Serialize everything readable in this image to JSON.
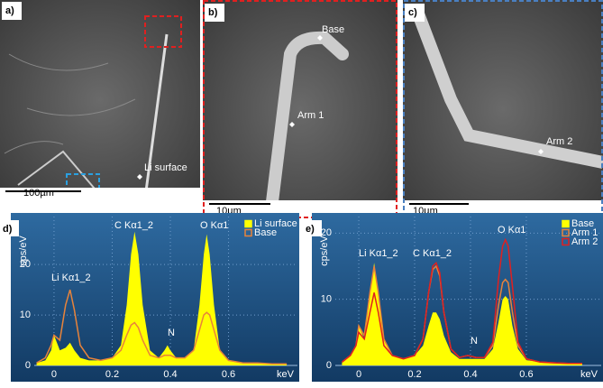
{
  "panels": [
    {
      "label": "a)",
      "annotations": [
        "Li surface"
      ],
      "scale_bar": "100µm"
    },
    {
      "label": "b)",
      "annotations": [
        "Base",
        "Arm 1"
      ],
      "scale_bar": "10µm"
    },
    {
      "label": "c)",
      "annotations": [
        "Arm 2"
      ],
      "scale_bar": "10µm"
    }
  ],
  "chart_data": [
    {
      "type": "line",
      "panel_label": "d)",
      "x_label": "keV",
      "y_label": "cps/eV",
      "annotations": [
        "Li Kα1_2",
        "C Kα1_2",
        "N",
        "O Kα1"
      ],
      "xlim": [
        -0.068,
        0.837
      ],
      "ylim": [
        0,
        29.5
      ],
      "xticks": [
        0,
        0.2,
        0.4,
        0.6
      ],
      "yticks": [
        0,
        10,
        20
      ],
      "grid": true,
      "legend": "top-right",
      "x": [
        -0.06,
        -0.03,
        -0.01,
        0,
        0.02,
        0.04,
        0.055,
        0.07,
        0.09,
        0.12,
        0.16,
        0.2,
        0.23,
        0.25,
        0.265,
        0.277,
        0.29,
        0.305,
        0.33,
        0.36,
        0.38,
        0.39,
        0.4,
        0.42,
        0.45,
        0.48,
        0.5,
        0.515,
        0.525,
        0.535,
        0.55,
        0.57,
        0.6,
        0.65,
        0.7,
        0.75,
        0.8
      ],
      "series": [
        {
          "name": "Li surface",
          "color": "#ffff00",
          "fill": true,
          "values": [
            0.5,
            1,
            3,
            6,
            3,
            3.5,
            4.5,
            3,
            1.5,
            1,
            1,
            1.5,
            4,
            12,
            22,
            26.5,
            22,
            12,
            3,
            1.5,
            3,
            4,
            3,
            1.5,
            1.5,
            3,
            12,
            22,
            26,
            22,
            12,
            3,
            1,
            0.5,
            0.5,
            0.3,
            0.3
          ]
        },
        {
          "name": "Base",
          "color": "#e8833a",
          "fill": false,
          "values": [
            0.5,
            1.5,
            4,
            6,
            5,
            12,
            15,
            11,
            4,
            1.5,
            1,
            1.5,
            3,
            6,
            8,
            8.5,
            7.5,
            5,
            2,
            1.5,
            2,
            2,
            2,
            1.5,
            1.5,
            3,
            7,
            10,
            10.5,
            10,
            7,
            3,
            1,
            0.5,
            0.5,
            0.3,
            0.3
          ]
        }
      ]
    },
    {
      "type": "line",
      "panel_label": "e)",
      "x_label": "keV",
      "y_label": "cps/eV",
      "annotations": [
        "Li Kα1_2",
        "C Kα1_2",
        "N",
        "O Kα1"
      ],
      "xlim": [
        -0.084,
        0.868
      ],
      "ylim": [
        0,
        22.5
      ],
      "xticks": [
        0,
        0.2,
        0.4,
        0.6
      ],
      "yticks": [
        0,
        10,
        20
      ],
      "grid": true,
      "legend": "top-right",
      "x": [
        -0.06,
        -0.03,
        -0.01,
        0,
        0.02,
        0.04,
        0.055,
        0.07,
        0.09,
        0.12,
        0.16,
        0.2,
        0.23,
        0.25,
        0.265,
        0.277,
        0.29,
        0.305,
        0.33,
        0.36,
        0.38,
        0.39,
        0.4,
        0.42,
        0.45,
        0.48,
        0.5,
        0.515,
        0.525,
        0.535,
        0.55,
        0.57,
        0.6,
        0.65,
        0.7,
        0.75,
        0.8
      ],
      "series": [
        {
          "name": "Base",
          "color": "#ffff00",
          "fill": true,
          "values": [
            0.5,
            1.5,
            3,
            6,
            4,
            11,
            15.5,
            11,
            4,
            1.5,
            1,
            1.5,
            3,
            6,
            8,
            8,
            7,
            4.5,
            2,
            1,
            1,
            1,
            1,
            1,
            1,
            2.5,
            6.5,
            10,
            10.5,
            10,
            6,
            2.5,
            0.8,
            0.5,
            0.4,
            0.3,
            0.3
          ]
        },
        {
          "name": "Arm 1",
          "color": "#e8833a",
          "fill": false,
          "values": [
            0.5,
            1.5,
            3,
            6,
            4.5,
            11,
            15,
            11,
            4,
            1.5,
            1,
            1.5,
            4,
            11,
            14.5,
            15,
            13.5,
            8,
            2.5,
            1.2,
            1.4,
            1.5,
            1.4,
            1.2,
            1.2,
            3,
            9,
            12.5,
            13,
            12.5,
            8,
            3,
            1,
            0.5,
            0.4,
            0.3,
            0.3
          ]
        },
        {
          "name": "Arm 2",
          "color": "#e02020",
          "fill": false,
          "values": [
            0.5,
            1.5,
            3,
            5,
            4,
            8,
            11,
            8,
            3,
            1.5,
            1,
            1.5,
            4,
            11,
            15,
            15.5,
            14,
            8,
            2.5,
            1.2,
            1.4,
            1.5,
            1.4,
            1.2,
            1.2,
            3.5,
            13,
            18,
            19,
            18,
            12,
            3.5,
            1,
            0.5,
            0.4,
            0.3,
            0.3
          ]
        }
      ]
    }
  ]
}
